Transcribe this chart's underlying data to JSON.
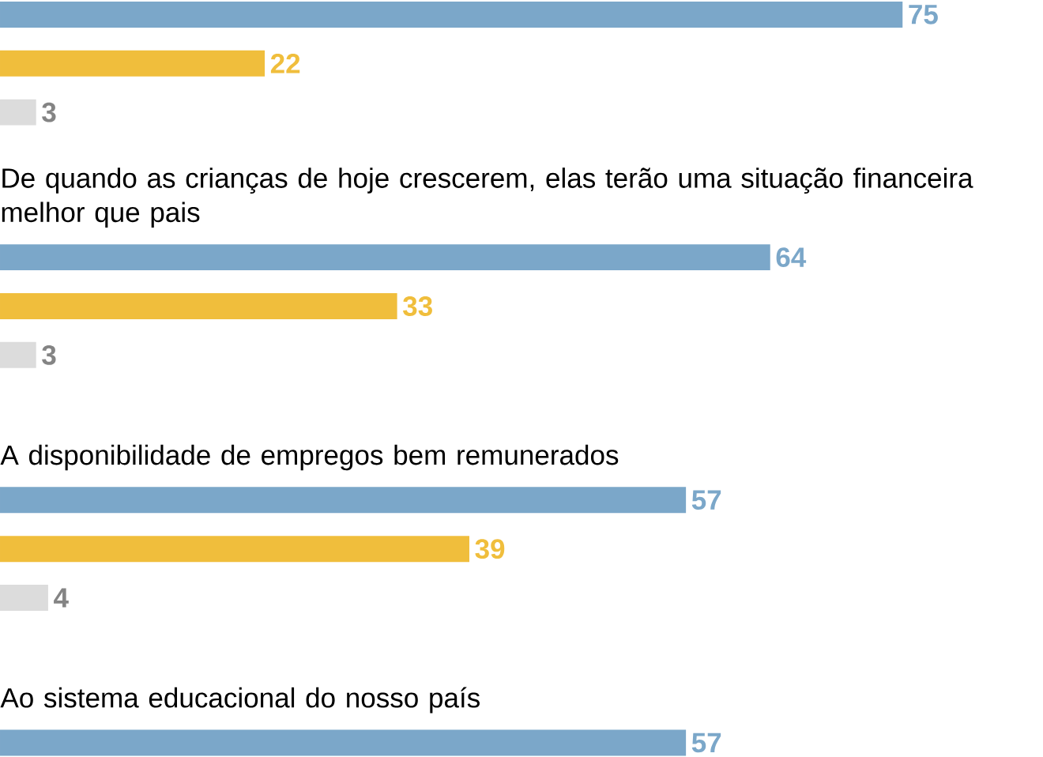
{
  "chart_data": {
    "type": "bar",
    "orientation": "horizontal",
    "data_labels": true,
    "categories": [
      null,
      "De quando as crianças de hoje crescerem, elas terão uma situação financeira melhor que pais",
      "A disponibilidade de empregos bem remunerados",
      "Ao sistema educacional do nosso país"
    ],
    "series": [
      {
        "color": "#7ba7c9",
        "values": [
          75,
          64,
          57,
          57
        ]
      },
      {
        "color": "#f0be3c",
        "values": [
          22,
          33,
          39,
          null
        ]
      },
      {
        "color": "#dcdcdc",
        "values": [
          3,
          3,
          4,
          null
        ]
      }
    ]
  }
}
